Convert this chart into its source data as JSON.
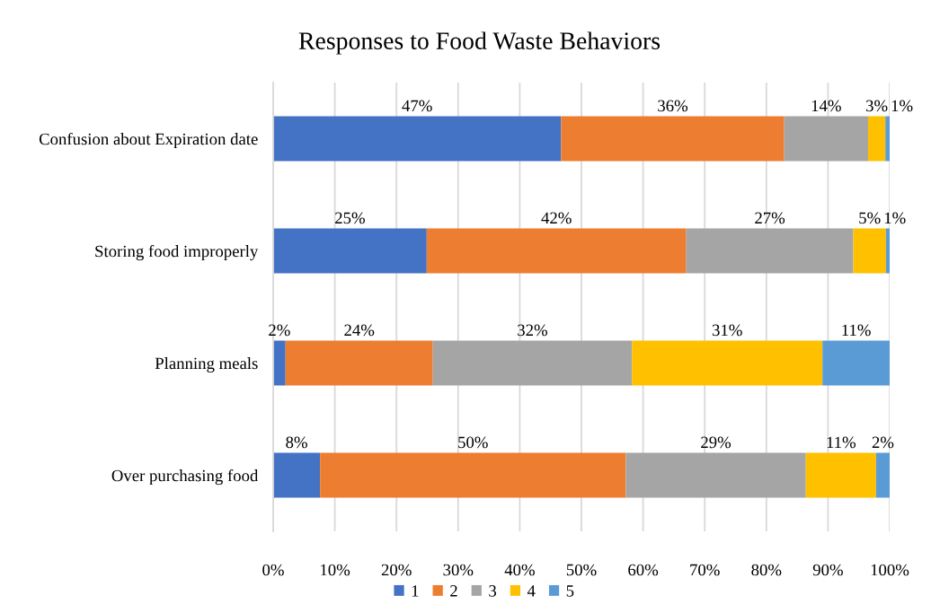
{
  "chart_data": {
    "type": "bar",
    "orientation": "horizontal",
    "stacked": true,
    "title": "Responses to Food Waste Behaviors",
    "categories": [
      "Confusion about Expiration date",
      "Storing food improperly",
      "Planning meals",
      "Over purchasing food"
    ],
    "series": [
      {
        "name": "1",
        "color": "#4472c4",
        "values": [
          46.7,
          24.9,
          2.0,
          7.6
        ],
        "value_labels": [
          "47%",
          "25%",
          "2%",
          "8%"
        ]
      },
      {
        "name": "2",
        "color": "#ed7d31",
        "values": [
          36.2,
          42.1,
          23.9,
          49.6
        ],
        "value_labels": [
          "36%",
          "42%",
          "24%",
          "50%"
        ]
      },
      {
        "name": "3",
        "color": "#a5a5a5",
        "values": [
          13.6,
          27.1,
          32.3,
          29.2
        ],
        "value_labels": [
          "14%",
          "27%",
          "32%",
          "29%"
        ]
      },
      {
        "name": "4",
        "color": "#ffc000",
        "values": [
          2.8,
          5.3,
          30.9,
          11.4
        ],
        "value_labels": [
          "3%",
          "5%",
          "31%",
          "11%"
        ]
      },
      {
        "name": "5",
        "color": "#5b9bd5",
        "values": [
          0.7,
          0.6,
          10.9,
          2.2
        ],
        "value_labels": [
          "1%",
          "1%",
          "11%",
          "2%"
        ]
      }
    ],
    "xlim": [
      0,
      100
    ],
    "xticks": [
      {
        "value": 0,
        "label": "0%"
      },
      {
        "value": 10,
        "label": "10%"
      },
      {
        "value": 20,
        "label": "20%"
      },
      {
        "value": 30,
        "label": "30%"
      },
      {
        "value": 40,
        "label": "40%"
      },
      {
        "value": 50,
        "label": "50%"
      },
      {
        "value": 60,
        "label": "60%"
      },
      {
        "value": 70,
        "label": "70%"
      },
      {
        "value": 80,
        "label": "80%"
      },
      {
        "value": 90,
        "label": "90%"
      },
      {
        "value": 100,
        "label": "100%"
      }
    ],
    "grid": "x",
    "legend": "bottom"
  }
}
